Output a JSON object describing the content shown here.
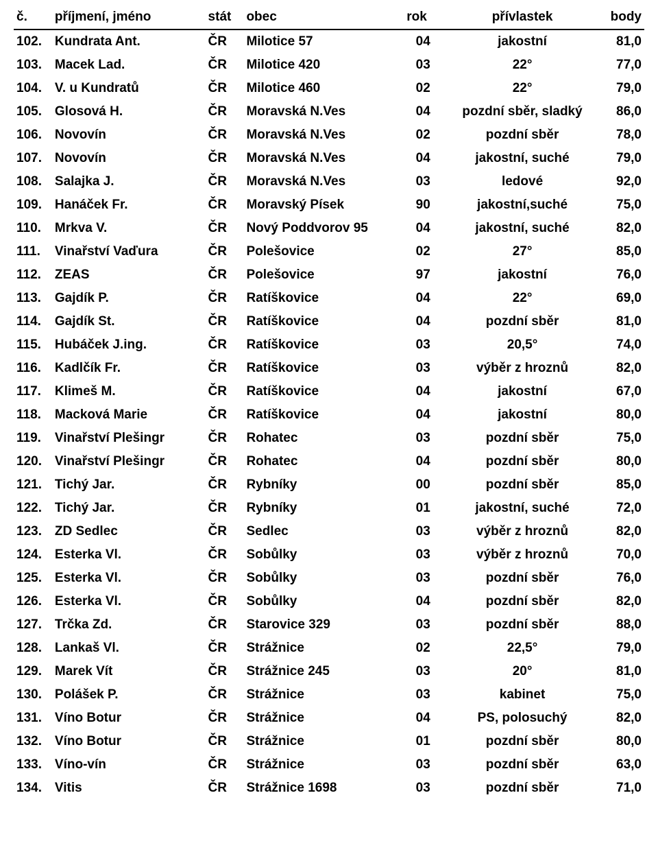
{
  "headers": {
    "num": "č.",
    "name": "příjmení, jméno",
    "stat": "stát",
    "obec": "obec",
    "rok": "rok",
    "priv": "přívlastek",
    "body": "body"
  },
  "rows": [
    {
      "num": "102.",
      "name": "Kundrata Ant.",
      "stat": "ČR",
      "obec": "Milotice 57",
      "rok": "04",
      "priv": "jakostní",
      "body": "81,0"
    },
    {
      "num": "103.",
      "name": "Macek Lad.",
      "stat": "ČR",
      "obec": "Milotice 420",
      "rok": "03",
      "priv": "22°",
      "body": "77,0"
    },
    {
      "num": "104.",
      "name": "V. u Kundratů",
      "stat": "ČR",
      "obec": "Milotice 460",
      "rok": "02",
      "priv": "22°",
      "body": "79,0"
    },
    {
      "num": "105.",
      "name": "Glosová H.",
      "stat": "ČR",
      "obec": "Moravská N.Ves",
      "rok": "04",
      "priv": "pozdní sběr, sladký",
      "body": "86,0"
    },
    {
      "num": "106.",
      "name": "Novovín",
      "stat": "ČR",
      "obec": "Moravská N.Ves",
      "rok": "02",
      "priv": "pozdní sběr",
      "body": "78,0"
    },
    {
      "num": "107.",
      "name": "Novovín",
      "stat": "ČR",
      "obec": "Moravská N.Ves",
      "rok": "04",
      "priv": "jakostní, suché",
      "body": "79,0"
    },
    {
      "num": "108.",
      "name": "Salajka J.",
      "stat": "ČR",
      "obec": "Moravská N.Ves",
      "rok": "03",
      "priv": "ledové",
      "body": "92,0"
    },
    {
      "num": "109.",
      "name": "Hanáček Fr.",
      "stat": "ČR",
      "obec": "Moravský Písek",
      "rok": "90",
      "priv": "jakostní,suché",
      "body": "75,0"
    },
    {
      "num": "110.",
      "name": "Mrkva V.",
      "stat": "ČR",
      "obec": "Nový Poddvorov 95",
      "rok": "04",
      "priv": "jakostní, suché",
      "body": "82,0"
    },
    {
      "num": "111.",
      "name": "Vinařství Vaďura",
      "stat": "ČR",
      "obec": "Polešovice",
      "rok": "02",
      "priv": "27°",
      "body": "85,0"
    },
    {
      "num": "112.",
      "name": "ZEAS",
      "stat": "ČR",
      "obec": "Polešovice",
      "rok": "97",
      "priv": "jakostní",
      "body": "76,0"
    },
    {
      "num": "113.",
      "name": "Gajdík P.",
      "stat": "ČR",
      "obec": "Ratíškovice",
      "rok": "04",
      "priv": "22°",
      "body": "69,0"
    },
    {
      "num": "114.",
      "name": "Gajdík St.",
      "stat": "ČR",
      "obec": "Ratíškovice",
      "rok": "04",
      "priv": "pozdní sběr",
      "body": "81,0"
    },
    {
      "num": "115.",
      "name": "Hubáček J.ing.",
      "stat": "ČR",
      "obec": "Ratíškovice",
      "rok": "03",
      "priv": "20,5°",
      "body": "74,0"
    },
    {
      "num": "116.",
      "name": "Kadlčík Fr.",
      "stat": "ČR",
      "obec": "Ratíškovice",
      "rok": "03",
      "priv": "výběr z hroznů",
      "body": "82,0"
    },
    {
      "num": "117.",
      "name": "Klimeš M.",
      "stat": "ČR",
      "obec": "Ratíškovice",
      "rok": "04",
      "priv": "jakostní",
      "body": "67,0"
    },
    {
      "num": "118.",
      "name": "Macková Marie",
      "stat": "ČR",
      "obec": "Ratíškovice",
      "rok": "04",
      "priv": "jakostní",
      "body": "80,0"
    },
    {
      "num": "119.",
      "name": "Vinařství Plešingr",
      "stat": "ČR",
      "obec": "Rohatec",
      "rok": "03",
      "priv": "pozdní sběr",
      "body": "75,0"
    },
    {
      "num": "120.",
      "name": "Vinařství Plešingr",
      "stat": "ČR",
      "obec": "Rohatec",
      "rok": "04",
      "priv": "pozdní sběr",
      "body": "80,0"
    },
    {
      "num": "121.",
      "name": "Tichý Jar.",
      "stat": "ČR",
      "obec": "Rybníky",
      "rok": "00",
      "priv": "pozdní sběr",
      "body": "85,0"
    },
    {
      "num": "122.",
      "name": "Tichý Jar.",
      "stat": "ČR",
      "obec": "Rybníky",
      "rok": "01",
      "priv": "jakostní, suché",
      "body": "72,0"
    },
    {
      "num": "123.",
      "name": "ZD Sedlec",
      "stat": "ČR",
      "obec": "Sedlec",
      "rok": "03",
      "priv": "výběr z hroznů",
      "body": "82,0"
    },
    {
      "num": "124.",
      "name": "Esterka Vl.",
      "stat": "ČR",
      "obec": "Sobůlky",
      "rok": "03",
      "priv": "výběr z hroznů",
      "body": "70,0"
    },
    {
      "num": "125.",
      "name": "Esterka Vl.",
      "stat": "ČR",
      "obec": "Sobůlky",
      "rok": "03",
      "priv": "pozdní sběr",
      "body": "76,0"
    },
    {
      "num": "126.",
      "name": "Esterka Vl.",
      "stat": "ČR",
      "obec": "Sobůlky",
      "rok": "04",
      "priv": "pozdní sběr",
      "body": "82,0"
    },
    {
      "num": "127.",
      "name": "Trčka Zd.",
      "stat": "ČR",
      "obec": "Starovice 329",
      "rok": "03",
      "priv": "pozdní sběr",
      "body": "88,0"
    },
    {
      "num": "128.",
      "name": "Lankaš Vl.",
      "stat": "ČR",
      "obec": "Strážnice",
      "rok": "02",
      "priv": "22,5°",
      "body": "79,0"
    },
    {
      "num": "129.",
      "name": "Marek Vít",
      "stat": "ČR",
      "obec": "Strážnice 245",
      "rok": "03",
      "priv": "20°",
      "body": "81,0"
    },
    {
      "num": "130.",
      "name": "Polášek P.",
      "stat": "ČR",
      "obec": "Strážnice",
      "rok": "03",
      "priv": "kabinet",
      "body": "75,0"
    },
    {
      "num": "131.",
      "name": "Víno Botur",
      "stat": "ČR",
      "obec": "Strážnice",
      "rok": "04",
      "priv": "PS, polosuchý",
      "body": "82,0"
    },
    {
      "num": "132.",
      "name": "Víno Botur",
      "stat": "ČR",
      "obec": "Strážnice",
      "rok": "01",
      "priv": "pozdní sběr",
      "body": "80,0"
    },
    {
      "num": "133.",
      "name": "Víno-vín",
      "stat": "ČR",
      "obec": "Strážnice",
      "rok": "03",
      "priv": "pozdní sběr",
      "body": "63,0"
    },
    {
      "num": "134.",
      "name": "Vitis",
      "stat": "ČR",
      "obec": "Strážnice 1698",
      "rok": "03",
      "priv": "pozdní sběr",
      "body": "71,0"
    }
  ]
}
